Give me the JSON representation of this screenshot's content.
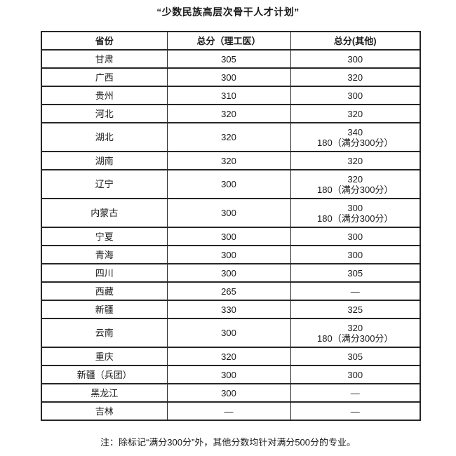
{
  "page": {
    "title": "“少数民族高层次骨干人才计划”",
    "note": "注：除标记“满分300分”外，其他分数均针对满分500分的专业。"
  },
  "table": {
    "headers": [
      "省份",
      "总分（理工医）",
      "总分(其他)"
    ],
    "rows": [
      {
        "province": "甘肃",
        "science": "305",
        "other": "300"
      },
      {
        "province": "广西",
        "science": "300",
        "other": "320"
      },
      {
        "province": "贵州",
        "science": "310",
        "other": "300"
      },
      {
        "province": "河北",
        "science": "320",
        "other": "320"
      },
      {
        "province": "湖北",
        "science": "320",
        "other": "340\n180（满分300分）"
      },
      {
        "province": "湖南",
        "science": "320",
        "other": "320"
      },
      {
        "province": "辽宁",
        "science": "300",
        "other": "320\n180（满分300分）"
      },
      {
        "province": "内蒙古",
        "science": "300",
        "other": "300\n180（满分300分）"
      },
      {
        "province": "宁夏",
        "science": "300",
        "other": "300"
      },
      {
        "province": "青海",
        "science": "300",
        "other": "300"
      },
      {
        "province": "四川",
        "science": "300",
        "other": "305"
      },
      {
        "province": "西藏",
        "science": "265",
        "other": "—"
      },
      {
        "province": "新疆",
        "science": "330",
        "other": "325"
      },
      {
        "province": "云南",
        "science": "300",
        "other": "320\n180（满分300分）"
      },
      {
        "province": "重庆",
        "science": "320",
        "other": "305"
      },
      {
        "province": "新疆（兵团）",
        "science": "300",
        "other": "300"
      },
      {
        "province": "黑龙江",
        "science": "300",
        "other": "—"
      },
      {
        "province": "吉林",
        "science": "—",
        "other": "—"
      }
    ]
  }
}
